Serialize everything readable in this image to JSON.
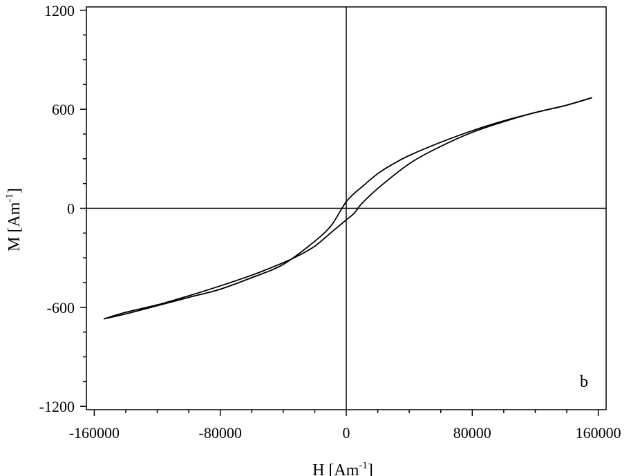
{
  "chart_data": {
    "type": "line",
    "title": "",
    "panel_label": "b",
    "xlabel": {
      "main": "H [Am",
      "sup": "-1",
      "end": "]"
    },
    "ylabel": {
      "main": "M [Am",
      "sup": "-1",
      "end": "]"
    },
    "xlim": [
      -165000,
      165000
    ],
    "ylim": [
      -1220,
      1220
    ],
    "x_ticks": [
      -160000,
      -80000,
      0,
      80000,
      160000
    ],
    "x_tick_labels": [
      "-160000",
      "-80000",
      "0",
      "80000",
      "160000"
    ],
    "x_minor_step": 20000,
    "y_ticks": [
      -1200,
      -600,
      0,
      600,
      1200
    ],
    "y_tick_labels": [
      "-1200",
      "-600",
      "0",
      "600",
      "1200"
    ],
    "y_minor_step": 150,
    "zero_lines": true,
    "grid": false,
    "line_color": "#000000",
    "series": [
      {
        "values": [
          [
            -154000,
            -670
          ],
          [
            -140000,
            -640
          ],
          [
            -120000,
            -590
          ],
          [
            -100000,
            -540
          ],
          [
            -80000,
            -490
          ],
          [
            -60000,
            -420
          ],
          [
            -40000,
            -340
          ],
          [
            -20000,
            -200
          ],
          [
            -10000,
            -110
          ],
          [
            -4000,
            -20
          ],
          [
            0,
            40
          ],
          [
            5000,
            90
          ],
          [
            10000,
            130
          ],
          [
            20000,
            210
          ],
          [
            30000,
            270
          ],
          [
            40000,
            320
          ],
          [
            60000,
            400
          ],
          [
            80000,
            470
          ],
          [
            100000,
            530
          ],
          [
            120000,
            580
          ],
          [
            140000,
            625
          ],
          [
            156000,
            670
          ]
        ]
      },
      {
        "values": [
          [
            156000,
            670
          ],
          [
            140000,
            625
          ],
          [
            120000,
            580
          ],
          [
            100000,
            525
          ],
          [
            80000,
            460
          ],
          [
            60000,
            375
          ],
          [
            40000,
            270
          ],
          [
            20000,
            120
          ],
          [
            10000,
            30
          ],
          [
            5000,
            -30
          ],
          [
            0,
            -70
          ],
          [
            -5000,
            -110
          ],
          [
            -10000,
            -150
          ],
          [
            -20000,
            -230
          ],
          [
            -30000,
            -285
          ],
          [
            -40000,
            -330
          ],
          [
            -60000,
            -405
          ],
          [
            -80000,
            -470
          ],
          [
            -100000,
            -530
          ],
          [
            -120000,
            -585
          ],
          [
            -140000,
            -630
          ],
          [
            -154000,
            -670
          ]
        ]
      }
    ]
  }
}
